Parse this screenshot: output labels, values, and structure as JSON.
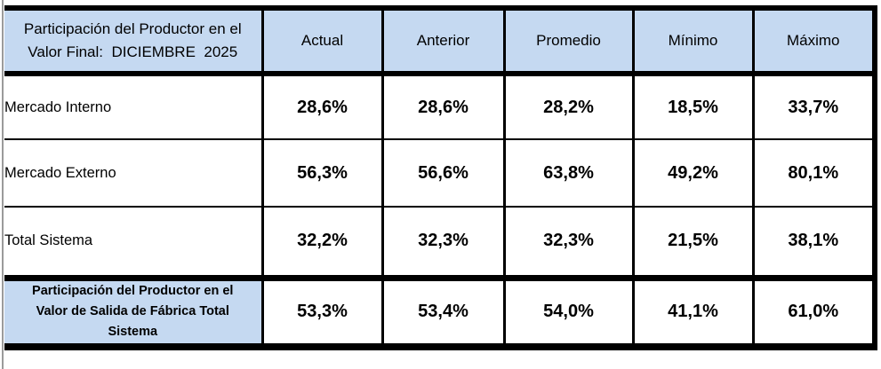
{
  "table": {
    "corner_header": "Participación del Productor en el\nValor Final:  DICIEMBRE  2025",
    "columns": [
      "Actual",
      "Anterior",
      "Promedio",
      "Mínimo",
      "Máximo"
    ],
    "rows": [
      {
        "label": "Mercado Interno",
        "values": [
          "28,6%",
          "28,6%",
          "28,2%",
          "18,5%",
          "33,7%"
        ]
      },
      {
        "label": "Mercado Externo",
        "values": [
          "56,3%",
          "56,6%",
          "63,8%",
          "49,2%",
          "80,1%"
        ]
      },
      {
        "label": "Total Sistema",
        "values": [
          "32,2%",
          "32,3%",
          "32,3%",
          "21,5%",
          "38,1%"
        ]
      }
    ],
    "footer_row": {
      "label": "Participación del Productor en el\nValor de Salida de Fábrica Total\nSistema",
      "values": [
        "53,3%",
        "53,4%",
        "54,0%",
        "41,1%",
        "61,0%"
      ]
    }
  },
  "colors": {
    "header_bg": "#c5d9f1",
    "border": "#000000",
    "gridline": "#9b9b9b"
  },
  "chart_data": {
    "type": "table",
    "title": "Participación del Productor en el Valor Final: DICIEMBRE 2025",
    "columns": [
      "Actual",
      "Anterior",
      "Promedio",
      "Mínimo",
      "Máximo"
    ],
    "rows": [
      {
        "label": "Mercado Interno",
        "actual": 28.6,
        "anterior": 28.6,
        "promedio": 28.2,
        "minimo": 18.5,
        "maximo": 33.7
      },
      {
        "label": "Mercado Externo",
        "actual": 56.3,
        "anterior": 56.6,
        "promedio": 63.8,
        "minimo": 49.2,
        "maximo": 80.1
      },
      {
        "label": "Total Sistema",
        "actual": 32.2,
        "anterior": 32.3,
        "promedio": 32.3,
        "minimo": 21.5,
        "maximo": 38.1
      },
      {
        "label": "Participación del Productor en el Valor de Salida de Fábrica Total Sistema",
        "actual": 53.3,
        "anterior": 53.4,
        "promedio": 54.0,
        "minimo": 41.1,
        "maximo": 61.0
      }
    ],
    "unit": "percent"
  }
}
